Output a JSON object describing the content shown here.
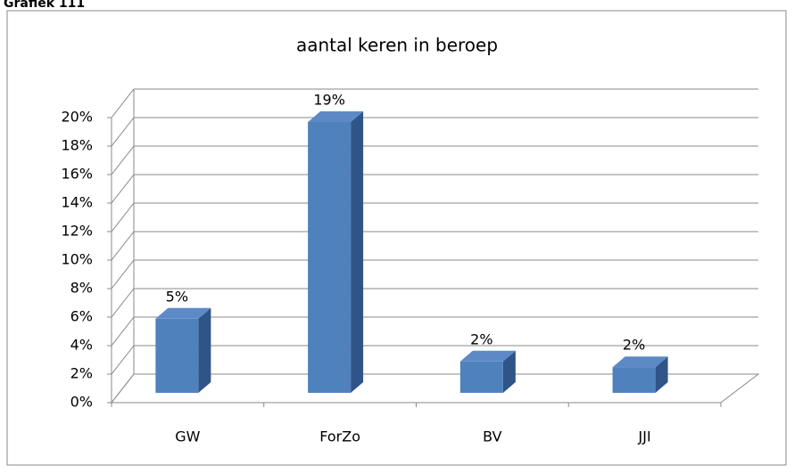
{
  "header": "Grafiek 111",
  "chart_data": {
    "type": "bar3d",
    "title": "aantal keren in beroep",
    "categories": [
      "GW",
      "ForZo",
      "BV",
      "JJI"
    ],
    "values": [
      5.2,
      19,
      2.2,
      1.8
    ],
    "value_labels": [
      "5%",
      "19%",
      "2%",
      "2%"
    ],
    "color": "#4f81bd",
    "ylim": [
      0,
      20
    ],
    "yticks": [
      {
        "value": 0,
        "label": "0%"
      },
      {
        "value": 2,
        "label": "2%"
      },
      {
        "value": 4,
        "label": "4%"
      },
      {
        "value": 6,
        "label": "6%"
      },
      {
        "value": 8,
        "label": "8%"
      },
      {
        "value": 10,
        "label": "10%"
      },
      {
        "value": 12,
        "label": "12%"
      },
      {
        "value": 14,
        "label": "14%"
      },
      {
        "value": 16,
        "label": "16%"
      },
      {
        "value": 18,
        "label": "18%"
      },
      {
        "value": 20,
        "label": "20%"
      }
    ],
    "grid": true
  }
}
